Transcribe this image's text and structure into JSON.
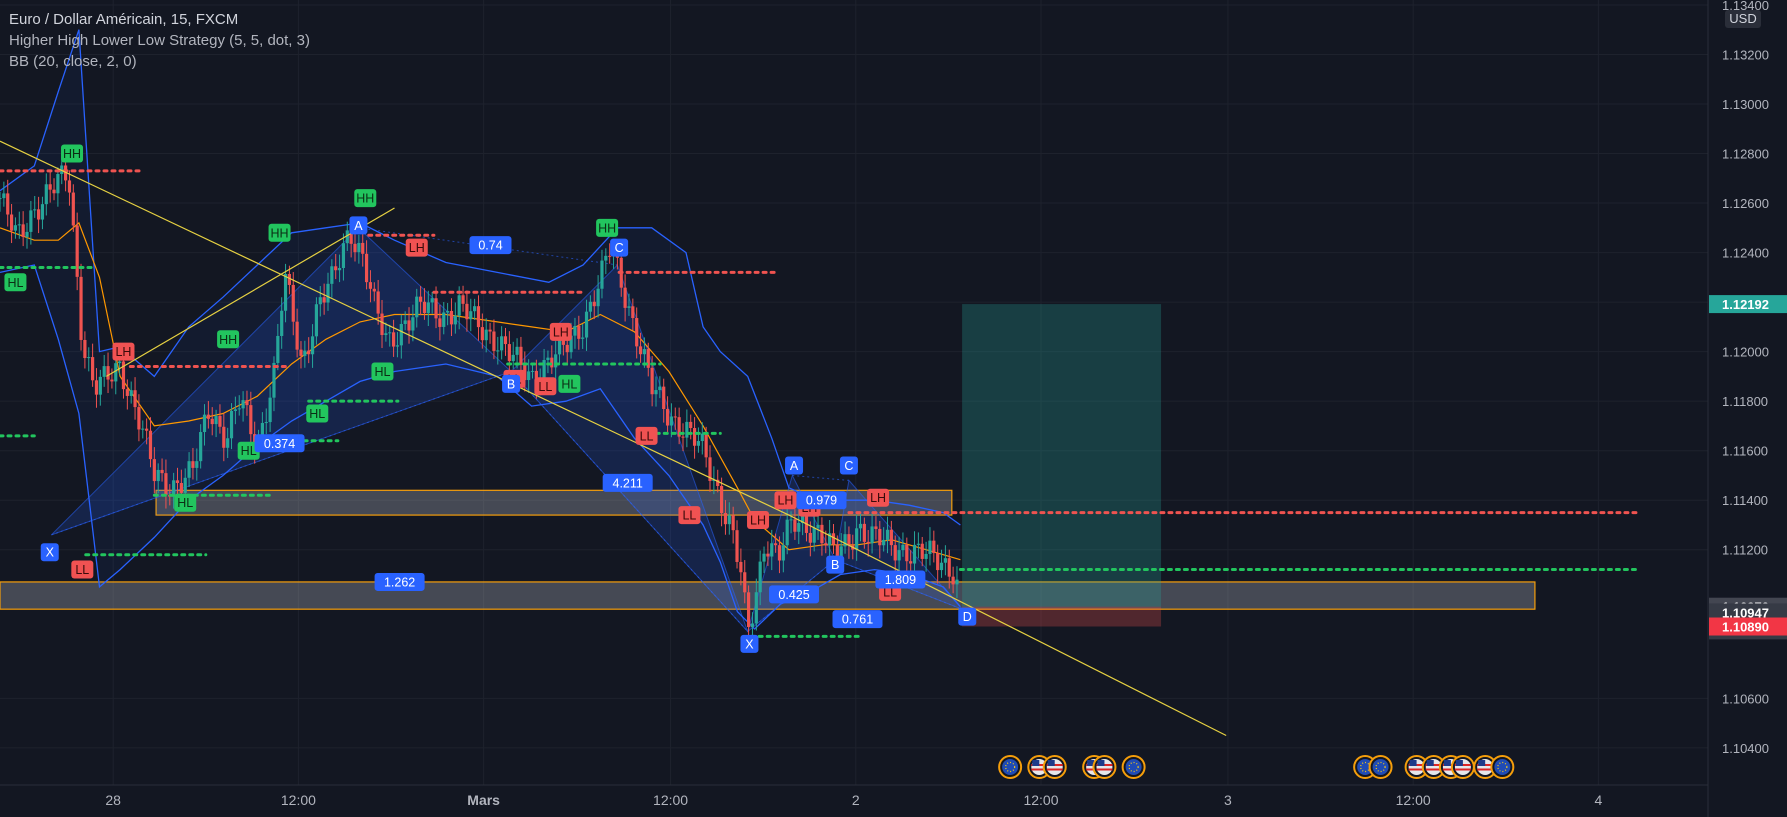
{
  "legend": {
    "symbol": "Euro / Dollar Américain, 15, FXCM",
    "indicator1": "Higher High Lower Low Strategy (5, 5, dot, 3)",
    "indicator2": "BB (20, close, 2, 0)"
  },
  "currency": "USD",
  "colors": {
    "background": "#131722",
    "up": "#26a69a",
    "down": "#ef5350",
    "bb": "#2962ff",
    "ma": "#ff9800",
    "trendline": "#e6d142",
    "hh_hl": "#22c55e",
    "lh_ll": "#f05252",
    "pattern": "#2962ff"
  },
  "chart_data": {
    "type": "candlestick",
    "ylim": [
      1.1025,
      1.1342
    ],
    "xlim": [
      0,
      1000
    ],
    "y_ticks": [
      "1.13400",
      "1.13200",
      "1.13000",
      "1.12800",
      "1.12600",
      "1.12400",
      "1.12200",
      "1.12000",
      "1.11800",
      "1.11600",
      "1.11400",
      "1.11200",
      "1.10600",
      "1.10400"
    ],
    "x_ticks": [
      {
        "t": 66,
        "label": "28"
      },
      {
        "t": 174,
        "label": "12:00"
      },
      {
        "t": 282,
        "label": "Mars"
      },
      {
        "t": 391,
        "label": "12:00"
      },
      {
        "t": 499,
        "label": "2"
      },
      {
        "t": 607,
        "label": "12:00"
      },
      {
        "t": 716,
        "label": "3"
      },
      {
        "t": 824,
        "label": "12:00"
      },
      {
        "t": 932,
        "label": "4"
      }
    ],
    "price_badges": [
      {
        "value": "1.12192",
        "color": "#26a69a"
      },
      {
        "value": "1.10970",
        "color": "#434651"
      },
      {
        "value": "1.10947",
        "color": "#363a45"
      },
      {
        "value": "00:14",
        "color": "#363a45"
      },
      {
        "value": "1.10890",
        "color": "#f23645"
      }
    ],
    "close_path": [
      [
        0,
        1.1262
      ],
      [
        10,
        1.1245
      ],
      [
        20,
        1.1258
      ],
      [
        30,
        1.1265
      ],
      [
        40,
        1.1272
      ],
      [
        48,
        1.1205
      ],
      [
        55,
        1.1185
      ],
      [
        62,
        1.1188
      ],
      [
        70,
        1.1195
      ],
      [
        80,
        1.1175
      ],
      [
        90,
        1.115
      ],
      [
        100,
        1.1146
      ],
      [
        112,
        1.115
      ],
      [
        122,
        1.1178
      ],
      [
        132,
        1.1165
      ],
      [
        140,
        1.118
      ],
      [
        150,
        1.1162
      ],
      [
        160,
        1.1192
      ],
      [
        166,
        1.123
      ],
      [
        176,
        1.1195
      ],
      [
        186,
        1.122
      ],
      [
        194,
        1.1228
      ],
      [
        204,
        1.125
      ],
      [
        212,
        1.1238
      ],
      [
        218,
        1.1218
      ],
      [
        226,
        1.1203
      ],
      [
        236,
        1.1212
      ],
      [
        246,
        1.1218
      ],
      [
        258,
        1.1215
      ],
      [
        268,
        1.1218
      ],
      [
        280,
        1.121
      ],
      [
        290,
        1.1205
      ],
      [
        300,
        1.1196
      ],
      [
        310,
        1.119
      ],
      [
        318,
        1.1195
      ],
      [
        328,
        1.12
      ],
      [
        340,
        1.1212
      ],
      [
        350,
        1.1228
      ],
      [
        356,
        1.1242
      ],
      [
        364,
        1.1225
      ],
      [
        372,
        1.1205
      ],
      [
        380,
        1.1185
      ],
      [
        390,
        1.1175
      ],
      [
        400,
        1.1168
      ],
      [
        410,
        1.116
      ],
      [
        418,
        1.1145
      ],
      [
        426,
        1.113
      ],
      [
        432,
        1.111
      ],
      [
        436,
        1.1085
      ],
      [
        440,
        1.1098
      ],
      [
        446,
        1.1125
      ],
      [
        454,
        1.1118
      ],
      [
        462,
        1.113
      ],
      [
        470,
        1.113
      ],
      [
        478,
        1.1128
      ],
      [
        486,
        1.1118
      ],
      [
        494,
        1.1122
      ],
      [
        500,
        1.113
      ],
      [
        508,
        1.1125
      ],
      [
        518,
        1.1122
      ],
      [
        528,
        1.112
      ],
      [
        538,
        1.1118
      ],
      [
        548,
        1.1116
      ],
      [
        556,
        1.1112
      ],
      [
        560,
        1.1101
      ]
    ],
    "bb_upper": [
      [
        0,
        1.1265
      ],
      [
        20,
        1.1275
      ],
      [
        34,
        1.1305
      ],
      [
        46,
        1.133
      ],
      [
        58,
        1.12
      ],
      [
        70,
        1.1202
      ],
      [
        90,
        1.119
      ],
      [
        110,
        1.121
      ],
      [
        130,
        1.1222
      ],
      [
        150,
        1.1235
      ],
      [
        170,
        1.1248
      ],
      [
        190,
        1.125
      ],
      [
        210,
        1.1252
      ],
      [
        230,
        1.1245
      ],
      [
        260,
        1.1236
      ],
      [
        290,
        1.1232
      ],
      [
        320,
        1.1228
      ],
      [
        340,
        1.1235
      ],
      [
        360,
        1.125
      ],
      [
        380,
        1.125
      ],
      [
        400,
        1.124
      ],
      [
        410,
        1.121
      ],
      [
        420,
        1.12
      ],
      [
        436,
        1.119
      ],
      [
        450,
        1.1165
      ],
      [
        460,
        1.1145
      ],
      [
        470,
        1.1142
      ],
      [
        490,
        1.114
      ],
      [
        510,
        1.114
      ],
      [
        530,
        1.1138
      ],
      [
        550,
        1.1135
      ],
      [
        560,
        1.113
      ]
    ],
    "bb_lower": [
      [
        0,
        1.1232
      ],
      [
        20,
        1.1235
      ],
      [
        34,
        1.1205
      ],
      [
        46,
        1.1175
      ],
      [
        58,
        1.1105
      ],
      [
        70,
        1.1112
      ],
      [
        90,
        1.1125
      ],
      [
        110,
        1.114
      ],
      [
        130,
        1.115
      ],
      [
        150,
        1.1162
      ],
      [
        170,
        1.1172
      ],
      [
        190,
        1.118
      ],
      [
        210,
        1.1188
      ],
      [
        230,
        1.1192
      ],
      [
        260,
        1.1195
      ],
      [
        290,
        1.119
      ],
      [
        310,
        1.1178
      ],
      [
        330,
        1.118
      ],
      [
        350,
        1.1185
      ],
      [
        370,
        1.1165
      ],
      [
        390,
        1.115
      ],
      [
        410,
        1.113
      ],
      [
        420,
        1.1115
      ],
      [
        430,
        1.1095
      ],
      [
        440,
        1.1088
      ],
      [
        455,
        1.1098
      ],
      [
        470,
        1.1102
      ],
      [
        490,
        1.111
      ],
      [
        510,
        1.1112
      ],
      [
        530,
        1.111
      ],
      [
        550,
        1.1105
      ],
      [
        560,
        1.1097
      ]
    ],
    "ma_line": [
      [
        0,
        1.125
      ],
      [
        20,
        1.1245
      ],
      [
        34,
        1.1245
      ],
      [
        46,
        1.1252
      ],
      [
        58,
        1.123
      ],
      [
        70,
        1.119
      ],
      [
        90,
        1.117
      ],
      [
        110,
        1.1172
      ],
      [
        130,
        1.1175
      ],
      [
        150,
        1.1182
      ],
      [
        170,
        1.1195
      ],
      [
        190,
        1.1205
      ],
      [
        210,
        1.1212
      ],
      [
        230,
        1.1215
      ],
      [
        260,
        1.1215
      ],
      [
        290,
        1.1212
      ],
      [
        310,
        1.121
      ],
      [
        330,
        1.1208
      ],
      [
        350,
        1.1215
      ],
      [
        370,
        1.1208
      ],
      [
        390,
        1.1192
      ],
      [
        410,
        1.117
      ],
      [
        430,
        1.1145
      ],
      [
        440,
        1.1132
      ],
      [
        460,
        1.112
      ],
      [
        480,
        1.1122
      ],
      [
        500,
        1.1122
      ],
      [
        520,
        1.1124
      ],
      [
        540,
        1.112
      ],
      [
        560,
        1.1116
      ]
    ],
    "trendlines": [
      [
        [
          0,
          1.1285
        ],
        [
          460,
          1.1134
        ],
        [
          715,
          1.1045
        ]
      ],
      [
        [
          62,
          1.119
        ],
        [
          230,
          1.1258
        ]
      ]
    ],
    "zones": [
      {
        "x1": 91,
        "x2": 555,
        "y1": 1.1144,
        "y2": 1.1134
      },
      {
        "x1": 0,
        "x2": 895,
        "y1": 1.1107,
        "y2": 1.1096
      }
    ],
    "position": {
      "x1": 561,
      "x2": 677,
      "entry": 1.1097,
      "target": 1.12192,
      "stop": 1.1089
    },
    "patterns": [
      [
        [
          30,
          1.1126
        ],
        [
          209,
          1.125
        ],
        [
          298,
          1.1192
        ],
        [
          360,
          1.1235
        ],
        [
          436,
          1.1087
        ]
      ],
      [
        [
          436,
          1.1087
        ],
        [
          462,
          1.115
        ],
        [
          487,
          1.1116
        ],
        [
          495,
          1.1148
        ],
        [
          561,
          1.1096
        ]
      ]
    ],
    "dotted_levels": [
      {
        "x1": 0,
        "x2": 83,
        "y": 1.1273,
        "color": "#ef5350"
      },
      {
        "x1": 0,
        "x2": 55,
        "y": 1.1234,
        "color": "#22c55e"
      },
      {
        "x1": 0,
        "x2": 20,
        "y": 1.1166,
        "color": "#22c55e"
      },
      {
        "x1": 76,
        "x2": 168,
        "y": 1.1194,
        "color": "#ef5350"
      },
      {
        "x1": 215,
        "x2": 253,
        "y": 1.1247,
        "color": "#ef5350"
      },
      {
        "x1": 253,
        "x2": 340,
        "y": 1.1224,
        "color": "#ef5350"
      },
      {
        "x1": 361,
        "x2": 452,
        "y": 1.1232,
        "color": "#ef5350"
      },
      {
        "x1": 296,
        "x2": 385,
        "y": 1.1195,
        "color": "#22c55e"
      },
      {
        "x1": 180,
        "x2": 232,
        "y": 1.118,
        "color": "#22c55e"
      },
      {
        "x1": 168,
        "x2": 197,
        "y": 1.1164,
        "color": "#22c55e"
      },
      {
        "x1": 90,
        "x2": 157,
        "y": 1.1142,
        "color": "#22c55e"
      },
      {
        "x1": 50,
        "x2": 120,
        "y": 1.1118,
        "color": "#22c55e"
      },
      {
        "x1": 438,
        "x2": 502,
        "y": 1.1085,
        "color": "#22c55e"
      },
      {
        "x1": 495,
        "x2": 955,
        "y": 1.1135,
        "color": "#ef5350"
      },
      {
        "x1": 560,
        "x2": 955,
        "y": 1.1112,
        "color": "#22c55e"
      },
      {
        "x1": 378,
        "x2": 420,
        "y": 1.1167,
        "color": "#22c55e"
      }
    ],
    "swing_labels": [
      {
        "text": "HH",
        "t": 42,
        "y": 1.128,
        "type": "hh"
      },
      {
        "text": "HL",
        "t": 9,
        "y": 1.1228,
        "type": "hh"
      },
      {
        "text": "LH",
        "t": 72,
        "y": 1.12,
        "type": "ll"
      },
      {
        "text": "LL",
        "t": 48,
        "y": 1.1112,
        "type": "ll"
      },
      {
        "text": "HL",
        "t": 108,
        "y": 1.1139,
        "type": "hh"
      },
      {
        "text": "HL",
        "t": 145,
        "y": 1.116,
        "type": "hh"
      },
      {
        "text": "HH",
        "t": 133,
        "y": 1.1205,
        "type": "hh"
      },
      {
        "text": "HL",
        "t": 185,
        "y": 1.1175,
        "type": "hh"
      },
      {
        "text": "HH",
        "t": 163,
        "y": 1.1248,
        "type": "hh"
      },
      {
        "text": "HH",
        "t": 213,
        "y": 1.1262,
        "type": "hh"
      },
      {
        "text": "LH",
        "t": 243,
        "y": 1.1242,
        "type": "ll"
      },
      {
        "text": "HL",
        "t": 223,
        "y": 1.1192,
        "type": "hh"
      },
      {
        "text": "HL",
        "t": 332,
        "y": 1.1187,
        "type": "hh"
      },
      {
        "text": "LH",
        "t": 327,
        "y": 1.1208,
        "type": "ll"
      },
      {
        "text": "LL",
        "t": 300,
        "y": 1.1189,
        "type": "ll"
      },
      {
        "text": "LL",
        "t": 318,
        "y": 1.1186,
        "type": "ll"
      },
      {
        "text": "HH",
        "t": 354,
        "y": 1.125,
        "type": "hh"
      },
      {
        "text": "LL",
        "t": 377,
        "y": 1.1166,
        "type": "ll"
      },
      {
        "text": "LL",
        "t": 402,
        "y": 1.1134,
        "type": "ll"
      },
      {
        "text": "LH",
        "t": 442,
        "y": 1.1132,
        "type": "ll"
      },
      {
        "text": "LH",
        "t": 458,
        "y": 1.114,
        "type": "ll"
      },
      {
        "text": "LH",
        "t": 472,
        "y": 1.1137,
        "type": "ll"
      },
      {
        "text": "LH",
        "t": 512,
        "y": 1.1141,
        "type": "ll"
      },
      {
        "text": "LL",
        "t": 519,
        "y": 1.1103,
        "type": "ll"
      }
    ],
    "point_labels": [
      {
        "text": "X",
        "t": 29,
        "y": 1.1119
      },
      {
        "text": "A",
        "t": 209,
        "y": 1.1251
      },
      {
        "text": "B",
        "t": 298,
        "y": 1.1187
      },
      {
        "text": "C",
        "t": 361,
        "y": 1.1242
      },
      {
        "text": "X",
        "t": 437,
        "y": 1.1082
      },
      {
        "text": "A",
        "t": 463,
        "y": 1.1154
      },
      {
        "text": "B",
        "t": 487,
        "y": 1.1114
      },
      {
        "text": "C",
        "t": 495,
        "y": 1.1154
      },
      {
        "text": "D",
        "t": 564,
        "y": 1.1093
      }
    ],
    "ratio_labels": [
      {
        "text": "0.74",
        "t": 286,
        "y": 1.1243
      },
      {
        "text": "0.374",
        "t": 163,
        "y": 1.1163
      },
      {
        "text": "4.211",
        "t": 366,
        "y": 1.1147
      },
      {
        "text": "1.262",
        "t": 233,
        "y": 1.1107
      },
      {
        "text": "0.979",
        "t": 479,
        "y": 1.114
      },
      {
        "text": "1.809",
        "t": 525,
        "y": 1.1108
      },
      {
        "text": "0.425",
        "t": 463,
        "y": 1.1102
      },
      {
        "text": "0.761",
        "t": 500,
        "y": 1.1092
      }
    ],
    "event_icons": [
      {
        "t": 589,
        "type": "eu"
      },
      {
        "t": 606,
        "type": "us"
      },
      {
        "t": 615,
        "type": "us"
      },
      {
        "t": 638,
        "type": "us"
      },
      {
        "t": 644,
        "type": "us"
      },
      {
        "t": 661,
        "type": "eu"
      },
      {
        "t": 796,
        "type": "eu"
      },
      {
        "t": 805,
        "type": "eu"
      },
      {
        "t": 826,
        "type": "us"
      },
      {
        "t": 836,
        "type": "us"
      },
      {
        "t": 846,
        "type": "us"
      },
      {
        "t": 853,
        "type": "us"
      },
      {
        "t": 866,
        "type": "us"
      },
      {
        "t": 876,
        "type": "eu"
      }
    ]
  }
}
